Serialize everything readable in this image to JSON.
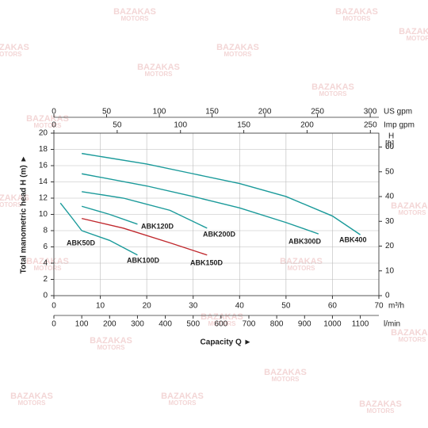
{
  "chart_data": {
    "type": "line",
    "watermark": [
      "BAZAKAS",
      "MOTORS"
    ],
    "xlabel": "Capacity Q ►",
    "ylabel": "Total manometric head H (m) ►",
    "x_unit": "m³/h",
    "xlim": [
      0,
      70
    ],
    "xticks": [
      0,
      10,
      20,
      30,
      40,
      50,
      60,
      70
    ],
    "ylim": [
      0,
      20
    ],
    "yticks": [
      0,
      2,
      4,
      6,
      8,
      10,
      12,
      14,
      16,
      18,
      20
    ],
    "y2_label": [
      "H",
      "[ft]"
    ],
    "y2lim": [
      0,
      65.6
    ],
    "y2ticks": [
      0,
      10,
      20,
      30,
      40,
      50,
      60
    ],
    "extra_x_axes": [
      {
        "label": "US gpm",
        "lim": [
          0,
          308.2
        ],
        "ticks": [
          0,
          50,
          100,
          150,
          200,
          250,
          300
        ]
      },
      {
        "label": "Imp gpm",
        "lim": [
          0,
          256.7
        ],
        "ticks": [
          0,
          50,
          100,
          150,
          200,
          250
        ]
      },
      {
        "label": "l/min",
        "lim": [
          0,
          1166.7
        ],
        "ticks": [
          0,
          100,
          200,
          300,
          400,
          500,
          600,
          700,
          800,
          900,
          1000,
          1100
        ]
      }
    ],
    "grid": true,
    "series": [
      {
        "name": "ABK400",
        "color": "#1a9a9a",
        "x": [
          6,
          20,
          30,
          40,
          50,
          60,
          66
        ],
        "values": [
          17.5,
          16.2,
          15,
          13.8,
          12.2,
          9.8,
          7.5
        ]
      },
      {
        "name": "ABK300D",
        "color": "#1a9a9a",
        "x": [
          6,
          20,
          30,
          40,
          50,
          57
        ],
        "values": [
          15,
          13.5,
          12.2,
          10.8,
          9.0,
          7.6
        ]
      },
      {
        "name": "ABK200D",
        "color": "#1a9a9a",
        "x": [
          6,
          15,
          25,
          33
        ],
        "values": [
          12.8,
          12,
          10.5,
          8.3
        ]
      },
      {
        "name": "ABK120D",
        "color": "#1a9a9a",
        "x": [
          6,
          12,
          18
        ],
        "values": [
          11,
          10,
          8.8
        ]
      },
      {
        "name": "ABK150D",
        "color": "#c0282d",
        "x": [
          6,
          15,
          25,
          33
        ],
        "values": [
          9.5,
          8.3,
          6.5,
          5
        ]
      },
      {
        "name": "ABK100D",
        "color": "#1a9a9a",
        "x": [
          6,
          12,
          18
        ],
        "values": [
          8,
          6.8,
          5
        ]
      },
      {
        "name": "ABK50D",
        "color": "#1a9a9a",
        "x": [
          1.4,
          4,
          6
        ],
        "values": [
          11.4,
          9.5,
          8
        ]
      }
    ]
  }
}
